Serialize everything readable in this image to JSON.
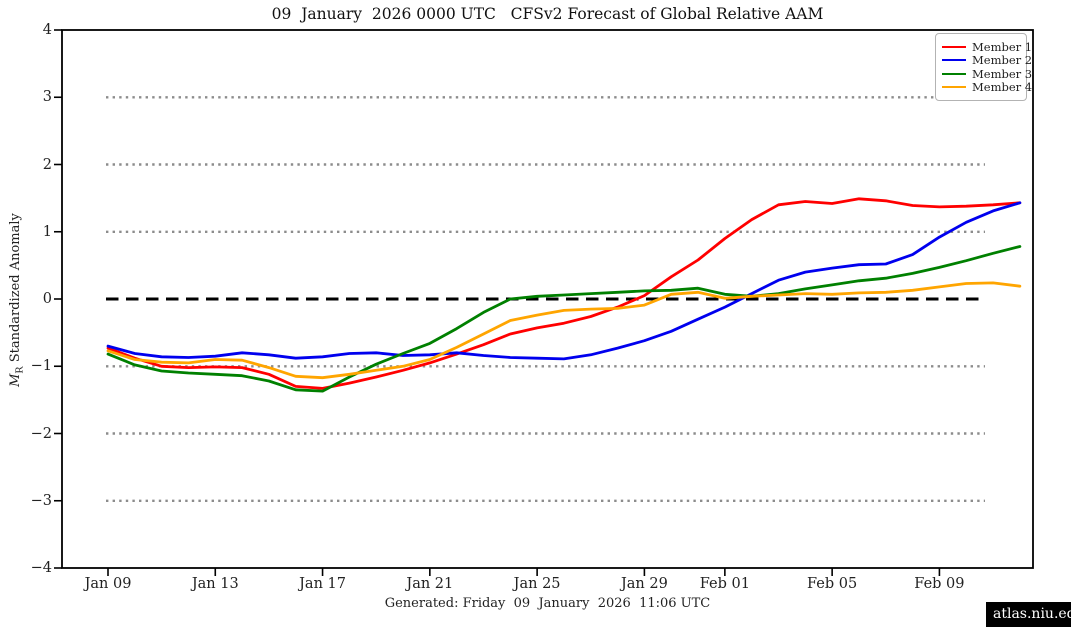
{
  "watermark": "atlas.niu.edu",
  "footer": "Generated: Friday  09  January  2026  11:06 UTC",
  "chart_data": {
    "type": "line",
    "title": "09  January  2026 0000 UTC   CFSv2 Forecast of Global Relative AAM",
    "xlabel": "",
    "ylabel": "M_R Standardized Anomaly",
    "ylabel_parts": {
      "m": "M",
      "sub": "R",
      "rest": " Standardized Anomaly"
    },
    "ylim": [
      -4,
      4
    ],
    "ytick_values": [
      4,
      3,
      2,
      1,
      0,
      -1,
      -2,
      -3,
      -4
    ],
    "ytick_labels": [
      "4",
      "3",
      "2",
      "1",
      "0",
      "−1",
      "−2",
      "−3",
      "−4"
    ],
    "grid": "dotted horizontal lines at -3,-2,-1,1,2,3; black dashed line at 0",
    "dotted_grid_values": [
      3,
      2,
      1,
      -1,
      -2,
      -3
    ],
    "zero_line_value": 0,
    "legend_position": "top-right",
    "x_start_date": "Jan 09",
    "x_end_date": "Feb 12",
    "x_days": [
      0,
      1,
      2,
      3,
      4,
      5,
      6,
      7,
      8,
      9,
      10,
      11,
      12,
      13,
      14,
      15,
      16,
      17,
      18,
      19,
      20,
      21,
      22,
      23,
      24,
      25,
      26,
      27,
      28,
      29,
      30,
      31,
      32,
      33,
      34
    ],
    "x_ticks": [
      {
        "label": "Jan 09",
        "day": 0
      },
      {
        "label": "Jan 13",
        "day": 4
      },
      {
        "label": "Jan 17",
        "day": 8
      },
      {
        "label": "Jan 21",
        "day": 12
      },
      {
        "label": "Jan 25",
        "day": 16
      },
      {
        "label": "Jan 29",
        "day": 20
      },
      {
        "label": "Feb 01",
        "day": 23
      },
      {
        "label": "Feb 05",
        "day": 27
      },
      {
        "label": "Feb 09",
        "day": 31
      }
    ],
    "series": [
      {
        "name": "Member 1",
        "color": "#ff0000",
        "values": [
          -0.73,
          -0.88,
          -1.0,
          -1.02,
          -1.01,
          -1.02,
          -1.12,
          -1.3,
          -1.33,
          -1.25,
          -1.16,
          -1.06,
          -0.95,
          -0.82,
          -0.68,
          -0.52,
          -0.43,
          -0.36,
          -0.26,
          -0.12,
          0.05,
          0.33,
          0.58,
          0.9,
          1.18,
          1.4,
          1.45,
          1.42,
          1.49,
          1.46,
          1.39,
          1.37,
          1.38,
          1.4,
          1.43
        ]
      },
      {
        "name": "Member 2",
        "color": "#0000ee",
        "values": [
          -0.7,
          -0.81,
          -0.86,
          -0.87,
          -0.85,
          -0.8,
          -0.83,
          -0.88,
          -0.86,
          -0.81,
          -0.8,
          -0.84,
          -0.83,
          -0.8,
          -0.84,
          -0.87,
          -0.88,
          -0.89,
          -0.83,
          -0.73,
          -0.62,
          -0.48,
          -0.3,
          -0.12,
          0.08,
          0.28,
          0.4,
          0.46,
          0.51,
          0.52,
          0.66,
          0.92,
          1.14,
          1.31,
          1.43
        ]
      },
      {
        "name": "Member 3",
        "color": "#008000",
        "values": [
          -0.82,
          -0.98,
          -1.07,
          -1.1,
          -1.12,
          -1.14,
          -1.22,
          -1.35,
          -1.37,
          -1.16,
          -0.97,
          -0.81,
          -0.66,
          -0.44,
          -0.2,
          0.0,
          0.04,
          0.06,
          0.08,
          0.1,
          0.12,
          0.13,
          0.16,
          0.07,
          0.04,
          0.08,
          0.15,
          0.21,
          0.27,
          0.31,
          0.38,
          0.47,
          0.57,
          0.68,
          0.78
        ]
      },
      {
        "name": "Member 4",
        "color": "#ffa500",
        "values": [
          -0.77,
          -0.9,
          -0.94,
          -0.95,
          -0.9,
          -0.91,
          -1.02,
          -1.15,
          -1.17,
          -1.12,
          -1.06,
          -1.0,
          -0.9,
          -0.72,
          -0.52,
          -0.32,
          -0.24,
          -0.17,
          -0.15,
          -0.14,
          -0.09,
          0.07,
          0.1,
          0.01,
          0.04,
          0.06,
          0.08,
          0.07,
          0.09,
          0.1,
          0.13,
          0.18,
          0.23,
          0.24,
          0.19
        ]
      }
    ]
  }
}
